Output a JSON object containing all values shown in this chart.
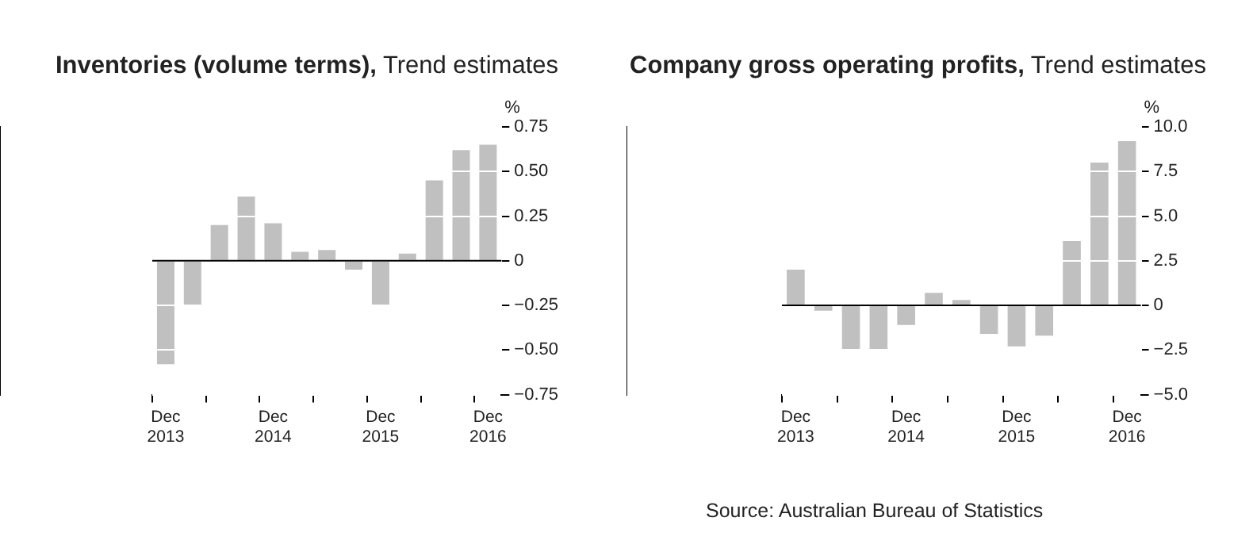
{
  "chart_data": [
    {
      "type": "bar",
      "title": "Inventories (volume terms),",
      "subtitle": "Trend estimates",
      "ylabel": "%",
      "categories": [
        "Dec 2013",
        null,
        null,
        null,
        "Dec 2014",
        null,
        null,
        null,
        "Dec 2015",
        null,
        null,
        null,
        "Dec 2016"
      ],
      "values": [
        -0.58,
        -0.25,
        0.2,
        0.36,
        0.21,
        0.05,
        0.06,
        -0.05,
        -0.25,
        0.04,
        0.45,
        0.62,
        0.65
      ],
      "color": "#c0c0c0",
      "ylim": [
        -0.75,
        0.75
      ],
      "yticks": [
        {
          "value": -0.75,
          "label": "−0.75"
        },
        {
          "value": -0.5,
          "label": "−0.50"
        },
        {
          "value": -0.25,
          "label": "−0.25"
        },
        0,
        0.25,
        {
          "value": 0.5,
          "label": "0.50"
        },
        0.75
      ],
      "grid": "y"
    },
    {
      "type": "bar",
      "title": "Company gross operating profits,",
      "subtitle": "Trend estimates",
      "ylabel": "%",
      "categories": [
        "Dec 2013",
        null,
        null,
        null,
        "Dec 2014",
        null,
        null,
        null,
        "Dec 2015",
        null,
        null,
        null,
        "Dec 2016"
      ],
      "values": [
        2.0,
        -0.3,
        -2.5,
        -2.5,
        -1.1,
        0.7,
        0.3,
        -1.6,
        -2.3,
        -1.7,
        3.6,
        8.0,
        9.2
      ],
      "color": "#c0c0c0",
      "ylim": [
        -5,
        10
      ],
      "yticks": [
        {
          "value": -5,
          "label": "−5.0"
        },
        {
          "value": -2.5,
          "label": "−2.5"
        },
        0,
        2.5,
        {
          "value": 5,
          "label": "5.0"
        },
        7.5,
        {
          "value": 10,
          "label": "10.0"
        }
      ],
      "grid": "y",
      "annotations": [
        "Source: Australian Bureau of Statistics"
      ]
    }
  ]
}
